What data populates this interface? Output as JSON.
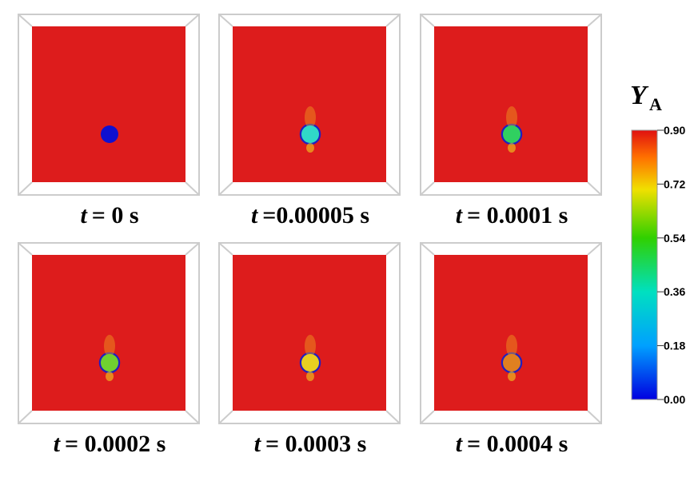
{
  "panels": [
    {
      "label": {
        "var": "t",
        "text": "= 0 s"
      }
    },
    {
      "label": {
        "var": "t",
        "text": "=0.00005 s"
      }
    },
    {
      "label": {
        "var": "t",
        "text": "= 0.0001 s"
      }
    },
    {
      "label": {
        "var": "t",
        "text": "= 0.0002 s"
      }
    },
    {
      "label": {
        "var": "t",
        "text": "= 0.0003 s"
      }
    },
    {
      "label": {
        "var": "t",
        "text": "= 0.0004 s"
      }
    }
  ],
  "colorbar": {
    "title": {
      "symbol": "Y",
      "subscript": "A"
    },
    "ticks": [
      {
        "value": 0,
        "label": "0.00"
      },
      {
        "value": 0.18,
        "label": "0.18"
      },
      {
        "value": 0.36,
        "label": "0.36"
      },
      {
        "value": 0.54,
        "label": "0.54"
      },
      {
        "value": 0.72,
        "label": "0.72"
      },
      {
        "value": 0.9,
        "label": "0.90"
      }
    ]
  }
}
